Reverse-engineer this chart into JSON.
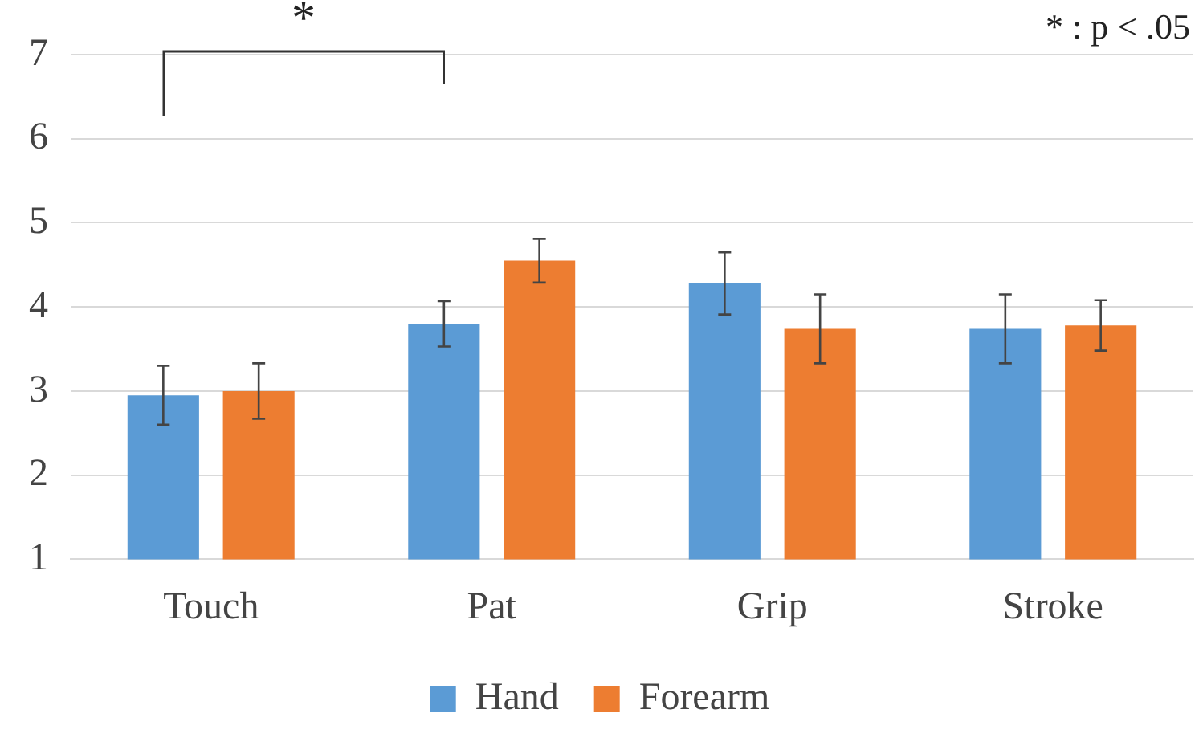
{
  "chart_data": {
    "type": "bar",
    "categories": [
      "Touch",
      "Pat",
      "Grip",
      "Stroke"
    ],
    "series": [
      {
        "name": "Hand",
        "color": "#5b9bd5",
        "values": [
          2.95,
          3.8,
          4.28,
          3.74
        ],
        "errors": [
          0.35,
          0.27,
          0.37,
          0.41
        ]
      },
      {
        "name": "Forearm",
        "color": "#ed7d31",
        "values": [
          3.0,
          4.55,
          3.74,
          3.78
        ],
        "errors": [
          0.33,
          0.26,
          0.41,
          0.3
        ]
      }
    ],
    "ylim": [
      1,
      7
    ],
    "yticks": [
      1,
      2,
      3,
      4,
      5,
      6,
      7
    ],
    "grid": "y",
    "legend": "bottom",
    "annotations": [
      "*",
      "* : p < .05"
    ]
  }
}
